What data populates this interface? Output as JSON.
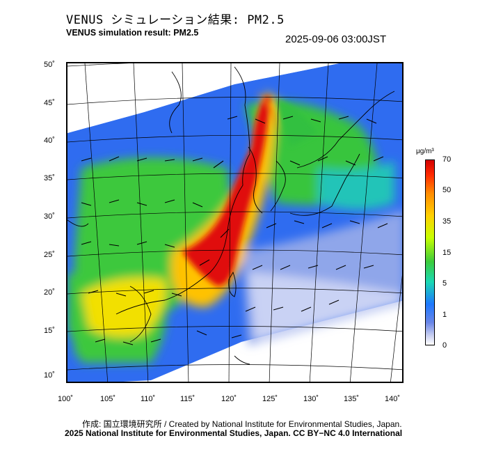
{
  "header": {
    "title_ja": "VENUS シミュレーション結果: PM2.5",
    "title_en": "VENUS simulation result: PM2.5",
    "timestamp": "2025-09-06 03:00JST"
  },
  "axes": {
    "lat_labels": [
      "50˚",
      "45˚",
      "40˚",
      "35˚",
      "30˚",
      "25˚",
      "20˚",
      "15˚",
      "10˚"
    ],
    "lon_labels": [
      "100˚",
      "105˚",
      "110˚",
      "115˚",
      "120˚",
      "125˚",
      "130˚",
      "135˚",
      "140˚"
    ]
  },
  "colorbar": {
    "unit": "μg/m³",
    "ticks": [
      "70",
      "50",
      "35",
      "15",
      "5",
      "1",
      "0"
    ]
  },
  "footer": {
    "credit_ja_en": "作成: 国立環境研究所 / Created by National Institute for Environmental Studies, Japan.",
    "license": "2025 National Institute for Environmental Studies, Japan. CC BY−NC 4.0 International"
  },
  "colors": {
    "high": "#e00000",
    "mid": "#22cc22",
    "low": "#2a6af0",
    "clean": "#e8ecf8"
  }
}
